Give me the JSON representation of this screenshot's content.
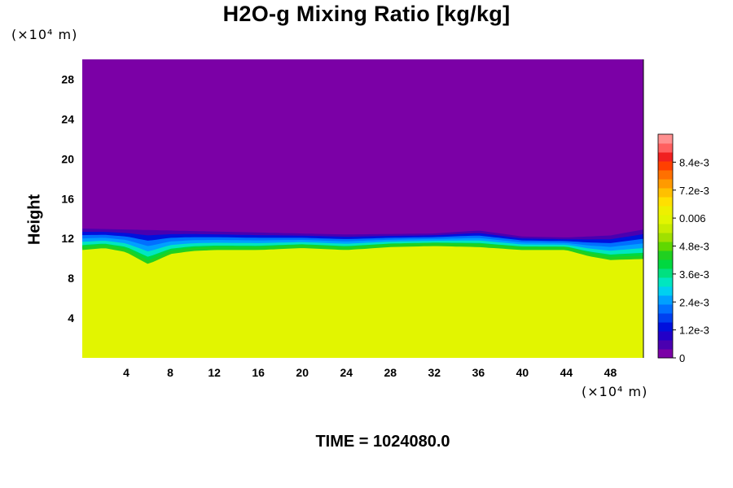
{
  "chart_data": {
    "type": "heatmap",
    "title": "H2O-g Mixing Ratio [kg/kg]",
    "ylabel": "Height",
    "xlabel": "",
    "x_unit_label": "(×10⁴ m)",
    "y_unit_label": "(×10⁴ m)",
    "xlim": [
      0,
      51
    ],
    "ylim": [
      0,
      30
    ],
    "x_ticks": [
      4,
      8,
      12,
      16,
      20,
      24,
      28,
      32,
      36,
      40,
      44,
      48
    ],
    "y_ticks": [
      4,
      8,
      12,
      16,
      20,
      24,
      28
    ],
    "colorbar": {
      "range": [
        0,
        0.0096
      ],
      "labels": [
        "0",
        "1.2e-3",
        "2.4e-3",
        "3.6e-3",
        "4.8e-3",
        "0.006",
        "7.2e-3",
        "8.4e-3"
      ],
      "label_values": [
        0,
        0.0012,
        0.0024,
        0.0036,
        0.0048,
        0.006,
        0.0072,
        0.0084
      ],
      "colors": [
        "#7b00a6",
        "#4a00b0",
        "#2200c8",
        "#0010dd",
        "#0040f0",
        "#0070ff",
        "#00a0ff",
        "#00d0f0",
        "#00e6c0",
        "#00e080",
        "#00d840",
        "#20d020",
        "#60d800",
        "#a0e000",
        "#c8ec00",
        "#e2f500",
        "#eef000",
        "#ffe000",
        "#ffc000",
        "#ff9a00",
        "#ff7000",
        "#ff4000",
        "#f02020",
        "#ff6060",
        "#ff9090"
      ]
    },
    "field": {
      "upper_value": 0.0,
      "lower_value": 0.0061,
      "interface_height": [
        [
          0,
          11.0
        ],
        [
          2,
          11.2
        ],
        [
          4,
          10.8
        ],
        [
          6,
          9.6
        ],
        [
          8,
          10.6
        ],
        [
          10,
          10.9
        ],
        [
          12,
          11.0
        ],
        [
          16,
          11.0
        ],
        [
          20,
          11.2
        ],
        [
          24,
          11.0
        ],
        [
          28,
          11.3
        ],
        [
          32,
          11.4
        ],
        [
          36,
          11.3
        ],
        [
          40,
          11.0
        ],
        [
          44,
          11.0
        ],
        [
          46,
          10.4
        ],
        [
          48,
          10.0
        ],
        [
          51,
          10.1
        ]
      ],
      "moist_top_height": [
        [
          0,
          13.0
        ],
        [
          8,
          12.8
        ],
        [
          16,
          12.6
        ],
        [
          24,
          12.4
        ],
        [
          32,
          12.5
        ],
        [
          36,
          12.8
        ],
        [
          40,
          12.2
        ],
        [
          44,
          12.1
        ],
        [
          48,
          12.3
        ],
        [
          51,
          12.9
        ]
      ]
    },
    "time_label": "TIME = 1024080.0"
  }
}
